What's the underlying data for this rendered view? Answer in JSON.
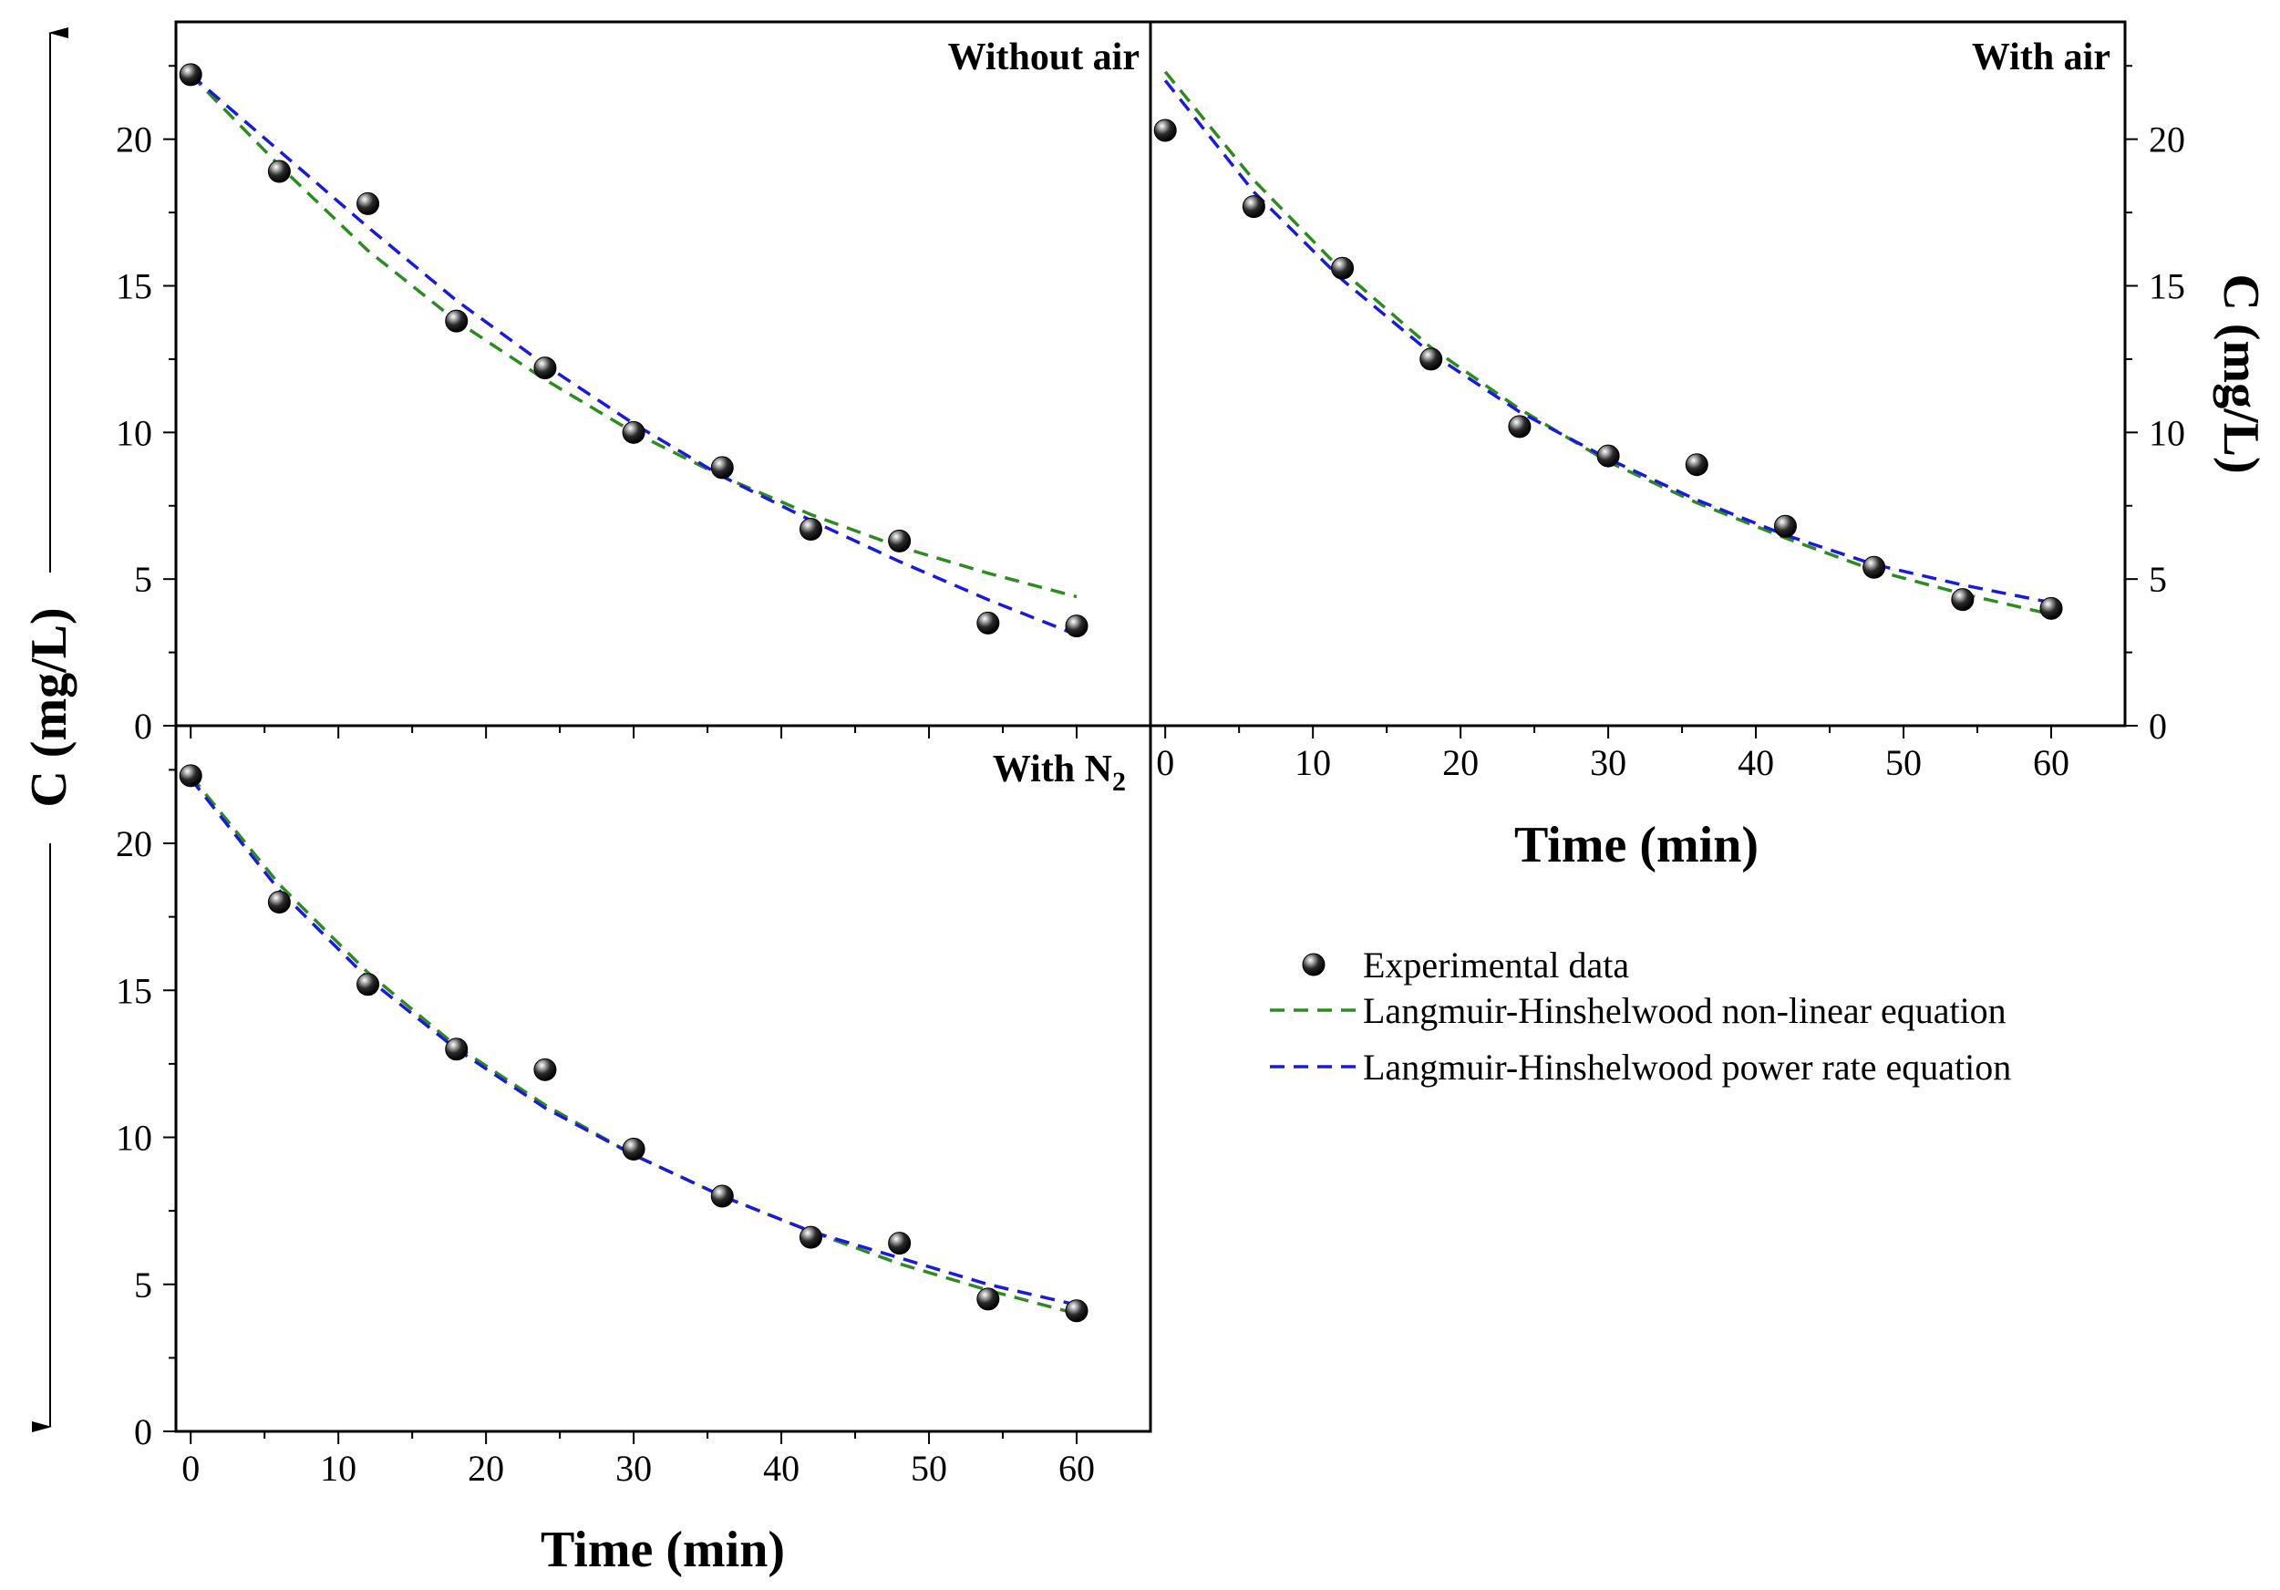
{
  "chart_data": [
    {
      "type": "scatter",
      "title": "Without air",
      "xlabel": "",
      "ylabel": "C (mg/L)",
      "xlim": [
        -1,
        65
      ],
      "ylim": [
        0,
        24
      ],
      "xticks": [],
      "yticks": [
        "0",
        "5",
        "10",
        "15",
        "20"
      ],
      "series": [
        {
          "name": "Experimental data",
          "kind": "points",
          "x": [
            0,
            6,
            12,
            18,
            24,
            30,
            36,
            42,
            48,
            54,
            60
          ],
          "y": [
            22.2,
            18.9,
            17.8,
            13.8,
            12.2,
            10.0,
            8.8,
            6.7,
            6.3,
            3.5,
            3.4
          ]
        },
        {
          "name": "Langmuir-Hinshelwood non-linear equation",
          "kind": "line",
          "color": "#2e8b22",
          "x": [
            0,
            6,
            12,
            18,
            24,
            30,
            36,
            42,
            48,
            54,
            60
          ],
          "y": [
            22.2,
            19.1,
            16.2,
            13.8,
            11.8,
            10.0,
            8.5,
            7.2,
            6.1,
            5.2,
            4.4
          ]
        },
        {
          "name": "Langmuir-Hinshelwood power rate equation",
          "kind": "line",
          "color": "#1a1adc",
          "x": [
            0,
            6,
            12,
            18,
            24,
            30,
            36,
            42,
            48,
            54,
            60
          ],
          "y": [
            22.2,
            19.6,
            17.0,
            14.5,
            12.3,
            10.3,
            8.5,
            7.0,
            5.6,
            4.3,
            3.1
          ]
        }
      ]
    },
    {
      "type": "scatter",
      "title": "With air",
      "xlabel": "Time (min)",
      "ylabel": "C (mg/L)",
      "xlim": [
        -1,
        65
      ],
      "ylim": [
        0,
        24
      ],
      "xticks": [
        "0",
        "10",
        "20",
        "30",
        "40",
        "50",
        "60"
      ],
      "yticks": [
        "0",
        "5",
        "10",
        "15",
        "20"
      ],
      "series": [
        {
          "name": "Experimental data",
          "kind": "points",
          "x": [
            0,
            6,
            12,
            18,
            24,
            30,
            36,
            42,
            48,
            54,
            60
          ],
          "y": [
            20.3,
            17.7,
            15.6,
            12.5,
            10.2,
            9.2,
            8.9,
            6.8,
            5.4,
            4.3,
            4.0
          ]
        },
        {
          "name": "Langmuir-Hinshelwood non-linear equation",
          "kind": "line",
          "color": "#2e8b22",
          "x": [
            0,
            6,
            12,
            18,
            24,
            30,
            36,
            42,
            48,
            54,
            60
          ],
          "y": [
            22.3,
            18.6,
            15.5,
            12.9,
            10.8,
            9.0,
            7.6,
            6.4,
            5.3,
            4.5,
            3.8
          ]
        },
        {
          "name": "Langmuir-Hinshelwood power rate equation",
          "kind": "line",
          "color": "#1a1adc",
          "x": [
            0,
            6,
            12,
            18,
            24,
            30,
            36,
            42,
            48,
            54,
            60
          ],
          "y": [
            22.0,
            18.2,
            15.2,
            12.7,
            10.7,
            9.1,
            7.7,
            6.5,
            5.5,
            4.8,
            4.2
          ]
        }
      ]
    },
    {
      "type": "scatter",
      "title": "With N",
      "title_subscript": "2",
      "xlabel": "Time (min)",
      "ylabel": "C (mg/L)",
      "xlim": [
        -1,
        65
      ],
      "ylim": [
        0,
        24
      ],
      "xticks": [
        "0",
        "10",
        "20",
        "30",
        "40",
        "50",
        "60"
      ],
      "yticks": [
        "0",
        "5",
        "10",
        "15",
        "20"
      ],
      "series": [
        {
          "name": "Experimental data",
          "kind": "points",
          "x": [
            0,
            6,
            12,
            18,
            24,
            30,
            36,
            42,
            48,
            54,
            60
          ],
          "y": [
            22.3,
            18.0,
            15.2,
            13.0,
            12.3,
            9.6,
            8.0,
            6.6,
            6.4,
            4.5,
            4.1
          ]
        },
        {
          "name": "Langmuir-Hinshelwood non-linear equation",
          "kind": "line",
          "color": "#2e8b22",
          "x": [
            0,
            6,
            12,
            18,
            24,
            30,
            36,
            42,
            48,
            54,
            60
          ],
          "y": [
            22.3,
            18.6,
            15.6,
            13.1,
            11.1,
            9.4,
            8.0,
            6.8,
            5.7,
            4.8,
            4.0
          ]
        },
        {
          "name": "Langmuir-Hinshelwood power rate equation",
          "kind": "line",
          "color": "#1a1adc",
          "x": [
            0,
            6,
            12,
            18,
            24,
            30,
            36,
            42,
            48,
            54,
            60
          ],
          "y": [
            22.2,
            18.4,
            15.4,
            13.0,
            11.0,
            9.4,
            8.0,
            6.8,
            5.9,
            5.0,
            4.3
          ]
        }
      ]
    }
  ],
  "shared_ylabel": "C (mg/L)",
  "legend": {
    "position": "lower-right",
    "items": [
      {
        "label": "Experimental data",
        "kind": "points"
      },
      {
        "label": "Langmuir-Hinshelwood non-linear equation",
        "kind": "line",
        "color": "#2e8b22"
      },
      {
        "label": "Langmuir-Hinshelwood power rate equation",
        "kind": "line",
        "color": "#1a1adc"
      }
    ]
  }
}
